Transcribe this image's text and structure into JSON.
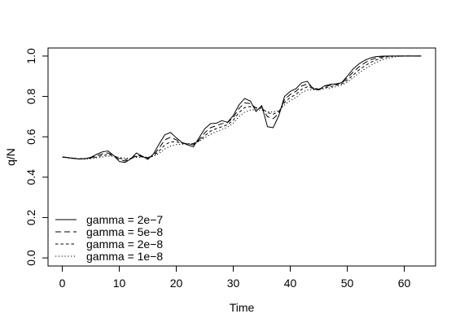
{
  "chart_data": {
    "type": "line",
    "title": "",
    "xlabel": "Time",
    "ylabel": "q/N",
    "xlim": [
      -2.5,
      65.5
    ],
    "ylim": [
      -0.04,
      1.04
    ],
    "xticks": [
      0,
      10,
      20,
      30,
      40,
      50,
      60
    ],
    "xtick_labels": [
      "0",
      "10",
      "20",
      "30",
      "40",
      "50",
      "60"
    ],
    "yticks": [
      0.0,
      0.2,
      0.4,
      0.6,
      0.8,
      1.0
    ],
    "ytick_labels": [
      "0.0",
      "0.2",
      "0.4",
      "0.6",
      "0.8",
      "1.0"
    ],
    "grid": false,
    "legend_position": "bottom-left",
    "series": [
      {
        "name": "gamma = 2e−7",
        "linestyle": "solid",
        "points": [
          [
            0,
            0.5
          ],
          [
            1,
            0.497
          ],
          [
            2,
            0.493
          ],
          [
            3,
            0.49
          ],
          [
            4,
            0.492
          ],
          [
            5,
            0.498
          ],
          [
            6,
            0.513
          ],
          [
            7,
            0.525
          ],
          [
            8,
            0.53
          ],
          [
            9,
            0.508
          ],
          [
            10,
            0.478
          ],
          [
            11,
            0.473
          ],
          [
            12,
            0.49
          ],
          [
            13,
            0.52
          ],
          [
            14,
            0.505
          ],
          [
            15,
            0.488
          ],
          [
            16,
            0.515
          ],
          [
            17,
            0.565
          ],
          [
            18,
            0.61
          ],
          [
            19,
            0.622
          ],
          [
            20,
            0.595
          ],
          [
            21,
            0.572
          ],
          [
            22,
            0.56
          ],
          [
            23,
            0.55
          ],
          [
            24,
            0.595
          ],
          [
            25,
            0.64
          ],
          [
            26,
            0.665
          ],
          [
            27,
            0.667
          ],
          [
            28,
            0.68
          ],
          [
            29,
            0.672
          ],
          [
            30,
            0.705
          ],
          [
            31,
            0.758
          ],
          [
            32,
            0.79
          ],
          [
            33,
            0.777
          ],
          [
            34,
            0.725
          ],
          [
            35,
            0.755
          ],
          [
            36,
            0.65
          ],
          [
            37,
            0.645
          ],
          [
            38,
            0.705
          ],
          [
            39,
            0.8
          ],
          [
            40,
            0.825
          ],
          [
            41,
            0.838
          ],
          [
            42,
            0.868
          ],
          [
            43,
            0.875
          ],
          [
            44,
            0.838
          ],
          [
            45,
            0.832
          ],
          [
            46,
            0.852
          ],
          [
            47,
            0.86
          ],
          [
            48,
            0.862
          ],
          [
            49,
            0.868
          ],
          [
            50,
            0.9
          ],
          [
            51,
            0.935
          ],
          [
            52,
            0.96
          ],
          [
            53,
            0.978
          ],
          [
            54,
            0.99
          ],
          [
            55,
            0.997
          ],
          [
            56,
            0.999
          ],
          [
            57,
            1.0
          ],
          [
            58,
            1.0
          ],
          [
            60,
            1.0
          ],
          [
            63,
            1.0
          ]
        ]
      },
      {
        "name": "gamma = 5e−8",
        "linestyle": "dashed",
        "points": [
          [
            0,
            0.5
          ],
          [
            1,
            0.497
          ],
          [
            2,
            0.494
          ],
          [
            3,
            0.492
          ],
          [
            4,
            0.492
          ],
          [
            5,
            0.496
          ],
          [
            6,
            0.506
          ],
          [
            7,
            0.515
          ],
          [
            8,
            0.52
          ],
          [
            9,
            0.508
          ],
          [
            10,
            0.488
          ],
          [
            11,
            0.48
          ],
          [
            12,
            0.49
          ],
          [
            13,
            0.51
          ],
          [
            14,
            0.503
          ],
          [
            15,
            0.494
          ],
          [
            16,
            0.508
          ],
          [
            17,
            0.545
          ],
          [
            18,
            0.585
          ],
          [
            19,
            0.598
          ],
          [
            20,
            0.585
          ],
          [
            21,
            0.57
          ],
          [
            22,
            0.565
          ],
          [
            23,
            0.56
          ],
          [
            24,
            0.585
          ],
          [
            25,
            0.62
          ],
          [
            26,
            0.645
          ],
          [
            27,
            0.655
          ],
          [
            28,
            0.665
          ],
          [
            29,
            0.67
          ],
          [
            30,
            0.695
          ],
          [
            31,
            0.74
          ],
          [
            32,
            0.768
          ],
          [
            33,
            0.765
          ],
          [
            34,
            0.742
          ],
          [
            35,
            0.748
          ],
          [
            36,
            0.7
          ],
          [
            37,
            0.69
          ],
          [
            38,
            0.715
          ],
          [
            39,
            0.785
          ],
          [
            40,
            0.81
          ],
          [
            41,
            0.825
          ],
          [
            42,
            0.852
          ],
          [
            43,
            0.862
          ],
          [
            44,
            0.842
          ],
          [
            45,
            0.836
          ],
          [
            46,
            0.848
          ],
          [
            47,
            0.855
          ],
          [
            48,
            0.86
          ],
          [
            49,
            0.866
          ],
          [
            50,
            0.89
          ],
          [
            51,
            0.92
          ],
          [
            52,
            0.945
          ],
          [
            53,
            0.965
          ],
          [
            54,
            0.98
          ],
          [
            55,
            0.99
          ],
          [
            56,
            0.996
          ],
          [
            57,
            0.999
          ],
          [
            58,
            1.0
          ],
          [
            60,
            1.0
          ],
          [
            63,
            1.0
          ]
        ]
      },
      {
        "name": "gamma = 2e−8",
        "linestyle": "short-dashed",
        "points": [
          [
            0,
            0.5
          ],
          [
            1,
            0.496
          ],
          [
            2,
            0.493
          ],
          [
            3,
            0.491
          ],
          [
            4,
            0.491
          ],
          [
            5,
            0.494
          ],
          [
            6,
            0.5
          ],
          [
            7,
            0.507
          ],
          [
            8,
            0.512
          ],
          [
            9,
            0.506
          ],
          [
            10,
            0.494
          ],
          [
            11,
            0.488
          ],
          [
            12,
            0.492
          ],
          [
            13,
            0.503
          ],
          [
            14,
            0.501
          ],
          [
            15,
            0.497
          ],
          [
            16,
            0.505
          ],
          [
            17,
            0.53
          ],
          [
            18,
            0.56
          ],
          [
            19,
            0.575
          ],
          [
            20,
            0.575
          ],
          [
            21,
            0.568
          ],
          [
            22,
            0.565
          ],
          [
            23,
            0.566
          ],
          [
            24,
            0.58
          ],
          [
            25,
            0.605
          ],
          [
            26,
            0.628
          ],
          [
            27,
            0.64
          ],
          [
            28,
            0.65
          ],
          [
            29,
            0.66
          ],
          [
            30,
            0.682
          ],
          [
            31,
            0.72
          ],
          [
            32,
            0.745
          ],
          [
            33,
            0.75
          ],
          [
            34,
            0.745
          ],
          [
            35,
            0.74
          ],
          [
            36,
            0.72
          ],
          [
            37,
            0.712
          ],
          [
            38,
            0.725
          ],
          [
            39,
            0.77
          ],
          [
            40,
            0.795
          ],
          [
            41,
            0.81
          ],
          [
            42,
            0.835
          ],
          [
            43,
            0.848
          ],
          [
            44,
            0.84
          ],
          [
            45,
            0.837
          ],
          [
            46,
            0.843
          ],
          [
            47,
            0.848
          ],
          [
            48,
            0.855
          ],
          [
            49,
            0.862
          ],
          [
            50,
            0.88
          ],
          [
            51,
            0.905
          ],
          [
            52,
            0.93
          ],
          [
            53,
            0.95
          ],
          [
            54,
            0.967
          ],
          [
            55,
            0.98
          ],
          [
            56,
            0.99
          ],
          [
            57,
            0.996
          ],
          [
            58,
            0.999
          ],
          [
            59,
            1.0
          ],
          [
            60,
            1.0
          ],
          [
            63,
            1.0
          ]
        ]
      },
      {
        "name": "gamma = 1e−8",
        "linestyle": "dotted",
        "points": [
          [
            0,
            0.5
          ],
          [
            1,
            0.495
          ],
          [
            2,
            0.492
          ],
          [
            3,
            0.49
          ],
          [
            4,
            0.49
          ],
          [
            5,
            0.492
          ],
          [
            6,
            0.496
          ],
          [
            7,
            0.5
          ],
          [
            8,
            0.504
          ],
          [
            9,
            0.503
          ],
          [
            10,
            0.498
          ],
          [
            11,
            0.494
          ],
          [
            12,
            0.494
          ],
          [
            13,
            0.498
          ],
          [
            14,
            0.499
          ],
          [
            15,
            0.499
          ],
          [
            16,
            0.503
          ],
          [
            17,
            0.518
          ],
          [
            18,
            0.54
          ],
          [
            19,
            0.555
          ],
          [
            20,
            0.562
          ],
          [
            21,
            0.563
          ],
          [
            22,
            0.564
          ],
          [
            23,
            0.568
          ],
          [
            24,
            0.578
          ],
          [
            25,
            0.595
          ],
          [
            26,
            0.612
          ],
          [
            27,
            0.625
          ],
          [
            28,
            0.636
          ],
          [
            29,
            0.648
          ],
          [
            30,
            0.668
          ],
          [
            31,
            0.7
          ],
          [
            32,
            0.722
          ],
          [
            33,
            0.732
          ],
          [
            34,
            0.735
          ],
          [
            35,
            0.732
          ],
          [
            36,
            0.725
          ],
          [
            37,
            0.722
          ],
          [
            38,
            0.73
          ],
          [
            39,
            0.758
          ],
          [
            40,
            0.78
          ],
          [
            41,
            0.795
          ],
          [
            42,
            0.818
          ],
          [
            43,
            0.832
          ],
          [
            44,
            0.833
          ],
          [
            45,
            0.833
          ],
          [
            46,
            0.838
          ],
          [
            47,
            0.842
          ],
          [
            48,
            0.848
          ],
          [
            49,
            0.856
          ],
          [
            50,
            0.87
          ],
          [
            51,
            0.892
          ],
          [
            52,
            0.915
          ],
          [
            53,
            0.935
          ],
          [
            54,
            0.952
          ],
          [
            55,
            0.967
          ],
          [
            56,
            0.98
          ],
          [
            57,
            0.989
          ],
          [
            58,
            0.995
          ],
          [
            59,
            0.998
          ],
          [
            60,
            1.0
          ],
          [
            63,
            1.0
          ]
        ]
      }
    ]
  }
}
